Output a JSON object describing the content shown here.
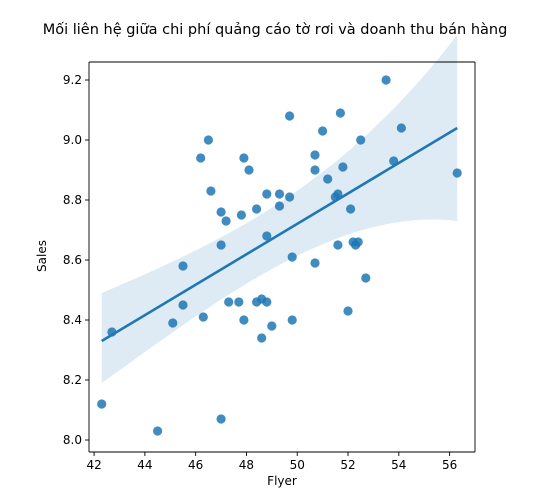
{
  "chart_data": {
    "type": "scatter",
    "title": "Mối liên hệ giữa chi phí quảng cáo tờ rơi và doanh thu bán hàng",
    "xlabel": "Flyer",
    "ylabel": "Sales",
    "xlim": [
      41.8,
      57.0
    ],
    "ylim": [
      7.96,
      9.26
    ],
    "xticks": [
      42,
      44,
      46,
      48,
      50,
      52,
      54,
      56
    ],
    "yticks": [
      8.0,
      8.2,
      8.4,
      8.6,
      8.8,
      9.0,
      9.2
    ],
    "xtick_labels": [
      "42",
      "44",
      "46",
      "48",
      "50",
      "52",
      "54",
      "56"
    ],
    "ytick_labels": [
      "8.0",
      "8.2",
      "8.4",
      "8.6",
      "8.8",
      "9.0",
      "9.2"
    ],
    "grid": false,
    "colors": {
      "points": "#1f77b4",
      "line": "#1f77b4",
      "band": "#1f77b4"
    },
    "points": [
      {
        "x": 42.3,
        "y": 8.12
      },
      {
        "x": 42.7,
        "y": 8.36
      },
      {
        "x": 44.5,
        "y": 8.03
      },
      {
        "x": 45.1,
        "y": 8.39
      },
      {
        "x": 45.5,
        "y": 8.45
      },
      {
        "x": 45.5,
        "y": 8.58
      },
      {
        "x": 46.2,
        "y": 8.94
      },
      {
        "x": 46.3,
        "y": 8.41
      },
      {
        "x": 46.5,
        "y": 9.0
      },
      {
        "x": 46.6,
        "y": 8.83
      },
      {
        "x": 47.0,
        "y": 8.07
      },
      {
        "x": 47.0,
        "y": 8.76
      },
      {
        "x": 47.0,
        "y": 8.65
      },
      {
        "x": 47.2,
        "y": 8.73
      },
      {
        "x": 47.3,
        "y": 8.46
      },
      {
        "x": 47.7,
        "y": 8.46
      },
      {
        "x": 47.8,
        "y": 8.75
      },
      {
        "x": 47.9,
        "y": 8.94
      },
      {
        "x": 47.9,
        "y": 8.4
      },
      {
        "x": 48.1,
        "y": 8.9
      },
      {
        "x": 48.4,
        "y": 8.77
      },
      {
        "x": 48.4,
        "y": 8.46
      },
      {
        "x": 48.6,
        "y": 8.47
      },
      {
        "x": 48.6,
        "y": 8.34
      },
      {
        "x": 48.8,
        "y": 8.82
      },
      {
        "x": 48.8,
        "y": 8.46
      },
      {
        "x": 48.8,
        "y": 8.68
      },
      {
        "x": 49.0,
        "y": 8.38
      },
      {
        "x": 49.3,
        "y": 8.82
      },
      {
        "x": 49.3,
        "y": 8.78
      },
      {
        "x": 49.7,
        "y": 9.08
      },
      {
        "x": 49.7,
        "y": 8.81
      },
      {
        "x": 49.8,
        "y": 8.61
      },
      {
        "x": 49.8,
        "y": 8.4
      },
      {
        "x": 50.7,
        "y": 8.95
      },
      {
        "x": 50.7,
        "y": 8.9
      },
      {
        "x": 50.7,
        "y": 8.59
      },
      {
        "x": 51.0,
        "y": 9.03
      },
      {
        "x": 51.2,
        "y": 8.87
      },
      {
        "x": 51.5,
        "y": 8.81
      },
      {
        "x": 51.6,
        "y": 8.65
      },
      {
        "x": 51.6,
        "y": 8.82
      },
      {
        "x": 51.7,
        "y": 9.09
      },
      {
        "x": 51.8,
        "y": 8.91
      },
      {
        "x": 52.0,
        "y": 8.43
      },
      {
        "x": 52.1,
        "y": 8.77
      },
      {
        "x": 52.2,
        "y": 8.66
      },
      {
        "x": 52.3,
        "y": 8.65
      },
      {
        "x": 52.4,
        "y": 8.66
      },
      {
        "x": 52.5,
        "y": 9.0
      },
      {
        "x": 52.7,
        "y": 8.54
      },
      {
        "x": 53.5,
        "y": 9.2
      },
      {
        "x": 53.8,
        "y": 8.93
      },
      {
        "x": 54.1,
        "y": 9.04
      },
      {
        "x": 56.3,
        "y": 8.89
      }
    ],
    "regression": {
      "x": [
        42.3,
        56.3
      ],
      "y": [
        8.33,
        9.04
      ],
      "ci_lower": [
        8.19,
        8.73
      ],
      "ci_upper": [
        8.49,
        9.35
      ]
    }
  }
}
